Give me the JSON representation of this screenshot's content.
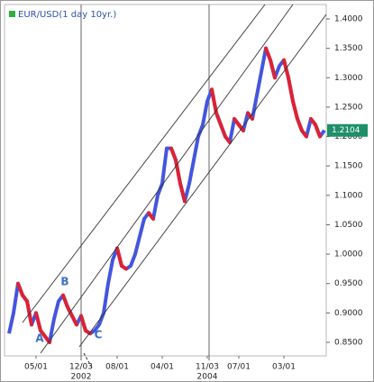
{
  "chart_data": {
    "type": "line",
    "title": "EUR/USD(1 day 10yr.)",
    "categories": [
      null,
      null,
      null,
      null,
      null,
      null,
      "05/01",
      null,
      null,
      null,
      null,
      null,
      null,
      null,
      null,
      null,
      "12/03",
      null,
      null,
      null,
      null,
      null,
      null,
      null,
      "08/01",
      null,
      null,
      null,
      null,
      null,
      null,
      null,
      null,
      null,
      "04/01",
      null,
      null,
      null,
      null,
      null,
      null,
      null,
      null,
      null,
      "11/03",
      null,
      null,
      null,
      null,
      null,
      null,
      "07/01",
      null,
      null,
      null,
      null,
      null,
      null,
      null,
      null,
      null,
      "03/01",
      null,
      null,
      null,
      null,
      null,
      null,
      null,
      null,
      null
    ],
    "year_labels": [
      null,
      null,
      null,
      null,
      null,
      null,
      null,
      null,
      null,
      null,
      null,
      null,
      null,
      null,
      null,
      null,
      "2002",
      null,
      null,
      null,
      null,
      null,
      null,
      null,
      null,
      null,
      null,
      null,
      null,
      null,
      null,
      null,
      null,
      null,
      null,
      null,
      null,
      null,
      null,
      null,
      null,
      null,
      null,
      null,
      "2004",
      null,
      null,
      null,
      null,
      null,
      null,
      null,
      null,
      null,
      null,
      null,
      null,
      null,
      null,
      null,
      null,
      null,
      null,
      null,
      null,
      null,
      null,
      null,
      null,
      null,
      null
    ],
    "series": [
      {
        "name": "EUR/USD",
        "color": "#4455dd",
        "down_color": "#dd2233",
        "values": [
          0.865,
          0.9,
          0.95,
          0.93,
          0.92,
          0.88,
          0.9,
          0.87,
          0.86,
          0.85,
          0.89,
          0.92,
          0.93,
          0.91,
          0.895,
          0.88,
          0.895,
          0.87,
          0.865,
          0.87,
          0.88,
          0.9,
          0.95,
          0.99,
          1.01,
          0.98,
          0.975,
          0.98,
          1.0,
          1.03,
          1.06,
          1.07,
          1.06,
          1.1,
          1.12,
          1.18,
          1.18,
          1.16,
          1.12,
          1.09,
          1.12,
          1.16,
          1.2,
          1.22,
          1.26,
          1.28,
          1.24,
          1.22,
          1.2,
          1.19,
          1.23,
          1.22,
          1.21,
          1.24,
          1.23,
          1.27,
          1.31,
          1.35,
          1.33,
          1.3,
          1.32,
          1.33,
          1.3,
          1.26,
          1.23,
          1.21,
          1.2,
          1.23,
          1.22,
          1.2,
          1.2104
        ]
      }
    ],
    "ylim": [
      0.827,
      1.4245
    ],
    "yticks": [
      {
        "value": 0.85,
        "label": "0.8500"
      },
      {
        "value": 0.9,
        "label": "0.9000"
      },
      {
        "value": 0.95,
        "label": "0.9500"
      },
      {
        "value": 1.0,
        "label": "1.0000"
      },
      {
        "value": 1.05,
        "label": "1.0500"
      },
      {
        "value": 1.1,
        "label": "1.1000"
      },
      {
        "value": 1.15,
        "label": "1.1500"
      },
      {
        "value": 1.2,
        "label": "1.2000"
      },
      {
        "value": 1.25,
        "label": "1.2500"
      },
      {
        "value": 1.3,
        "label": "1.3000"
      },
      {
        "value": 1.35,
        "label": "1.3500"
      },
      {
        "value": 1.4,
        "label": "1.4000"
      }
    ],
    "annotations": [
      "A",
      "B",
      "C"
    ],
    "grid": false
  }
}
